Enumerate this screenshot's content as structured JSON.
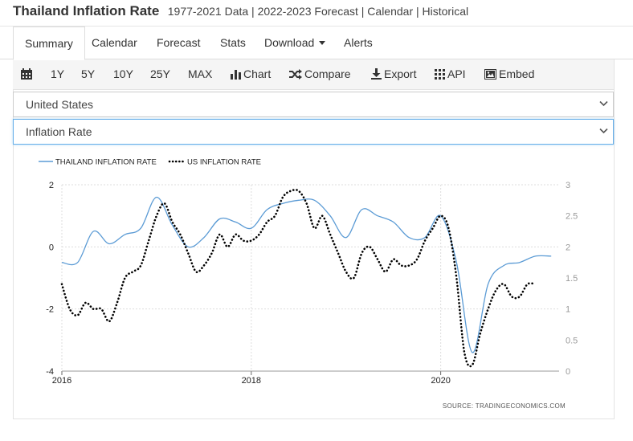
{
  "header": {
    "title": "Thailand Inflation Rate",
    "subtitle": "1977-2021 Data | 2022-2023 Forecast | Calendar | Historical"
  },
  "tabs": [
    {
      "label": "Summary",
      "active": true
    },
    {
      "label": "Calendar"
    },
    {
      "label": "Forecast"
    },
    {
      "label": "Stats"
    },
    {
      "label": "Download",
      "dropdown": true
    },
    {
      "label": "Alerts"
    }
  ],
  "toolbar": {
    "ranges": [
      "1Y",
      "5Y",
      "10Y",
      "25Y",
      "MAX"
    ],
    "chart_label": "Chart",
    "compare_label": "Compare",
    "export_label": "Export",
    "api_label": "API",
    "embed_label": "Embed"
  },
  "selects": {
    "country": "United States",
    "indicator": "Inflation Rate"
  },
  "colors": {
    "thailand": "#5b9bd5",
    "us": "#000000",
    "grid": "#dddddd",
    "right_axis": "#9a9a9a"
  },
  "chart_data": {
    "type": "line",
    "source": "SOURCE:  TRADINGECONOMICS.COM",
    "left_axis": {
      "ticks": [
        "2",
        "0",
        "-2",
        "-4"
      ],
      "ylim": [
        -4,
        2
      ]
    },
    "right_axis": {
      "ticks": [
        "3",
        "2.5",
        "2",
        "1.5",
        "1",
        "0.5",
        "0"
      ],
      "ylim": [
        0,
        3
      ]
    },
    "x_ticks": [
      "2016",
      "2018",
      "2020"
    ],
    "series": [
      {
        "name": "THAILAND INFLATION RATE",
        "axis": "left",
        "style": "solid",
        "x": [
          "2016-01",
          "2016-03",
          "2016-05",
          "2016-07",
          "2016-09",
          "2016-11",
          "2017-01",
          "2017-03",
          "2017-05",
          "2017-07",
          "2017-09",
          "2017-11",
          "2018-01",
          "2018-03",
          "2018-05",
          "2018-07",
          "2018-09",
          "2018-11",
          "2019-01",
          "2019-03",
          "2019-05",
          "2019-07",
          "2019-09",
          "2019-11",
          "2020-01",
          "2020-03",
          "2020-05",
          "2020-07",
          "2020-09",
          "2020-11",
          "2021-01",
          "2021-03"
        ],
        "values": [
          -0.5,
          -0.5,
          0.5,
          0.1,
          0.4,
          0.6,
          1.6,
          0.7,
          0.0,
          0.3,
          0.9,
          0.8,
          0.6,
          1.2,
          1.4,
          1.5,
          1.5,
          1.0,
          0.3,
          1.2,
          1.0,
          0.8,
          0.3,
          0.3,
          1.0,
          -0.5,
          -3.4,
          -1.2,
          -0.6,
          -0.5,
          -0.3,
          -0.3
        ]
      },
      {
        "name": "US INFLATION RATE",
        "axis": "right",
        "style": "dotted",
        "x": [
          "2016-01",
          "2016-02",
          "2016-03",
          "2016-04",
          "2016-05",
          "2016-06",
          "2016-07",
          "2016-08",
          "2016-09",
          "2016-10",
          "2016-11",
          "2016-12",
          "2017-01",
          "2017-02",
          "2017-03",
          "2017-04",
          "2017-05",
          "2017-06",
          "2017-07",
          "2017-08",
          "2017-09",
          "2017-10",
          "2017-11",
          "2017-12",
          "2018-01",
          "2018-02",
          "2018-03",
          "2018-04",
          "2018-05",
          "2018-06",
          "2018-07",
          "2018-08",
          "2018-09",
          "2018-10",
          "2018-11",
          "2018-12",
          "2019-01",
          "2019-02",
          "2019-03",
          "2019-04",
          "2019-05",
          "2019-06",
          "2019-07",
          "2019-08",
          "2019-09",
          "2019-10",
          "2019-11",
          "2019-12",
          "2020-01",
          "2020-02",
          "2020-03",
          "2020-04",
          "2020-05",
          "2020-06",
          "2020-07",
          "2020-08",
          "2020-09",
          "2020-10",
          "2020-11",
          "2020-12",
          "2021-01"
        ],
        "values": [
          1.4,
          1.0,
          0.9,
          1.1,
          1.0,
          1.0,
          0.8,
          1.1,
          1.5,
          1.6,
          1.7,
          2.1,
          2.5,
          2.7,
          2.4,
          2.2,
          1.9,
          1.6,
          1.7,
          1.9,
          2.2,
          2.0,
          2.2,
          2.1,
          2.1,
          2.2,
          2.4,
          2.5,
          2.8,
          2.9,
          2.9,
          2.7,
          2.3,
          2.5,
          2.2,
          1.9,
          1.6,
          1.5,
          1.9,
          2.0,
          1.8,
          1.6,
          1.8,
          1.7,
          1.7,
          1.8,
          2.1,
          2.3,
          2.5,
          2.3,
          1.5,
          0.3,
          0.1,
          0.6,
          1.0,
          1.3,
          1.4,
          1.2,
          1.2,
          1.4,
          1.4
        ]
      }
    ]
  }
}
